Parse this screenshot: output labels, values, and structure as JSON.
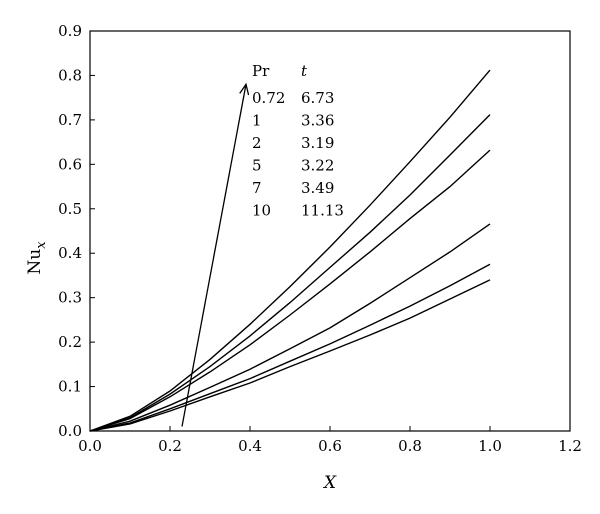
{
  "chart_data": {
    "type": "line",
    "xlabel": "X",
    "ylabel_main": "Nu",
    "ylabel_sub": "x",
    "xlim": [
      0.0,
      1.2
    ],
    "ylim": [
      0.0,
      0.9
    ],
    "xticks": [
      "0.0",
      "0.2",
      "0.4",
      "0.6",
      "0.8",
      "1.0",
      "1.2"
    ],
    "yticks": [
      "0.0",
      "0.1",
      "0.2",
      "0.3",
      "0.4",
      "0.5",
      "0.6",
      "0.7",
      "0.8",
      "0.9"
    ],
    "grid": false,
    "legend": {
      "header_pr": "Pr",
      "header_t": "t",
      "rows": [
        {
          "pr": "0.72",
          "t": "6.73"
        },
        {
          "pr": "1",
          "t": "3.36"
        },
        {
          "pr": "2",
          "t": "3.19"
        },
        {
          "pr": "5",
          "t": "3.22"
        },
        {
          "pr": "7",
          "t": "3.49"
        },
        {
          "pr": "10",
          "t": "11.13"
        }
      ]
    },
    "arrow": {
      "from": [
        0.23,
        0.01
      ],
      "to": [
        0.39,
        0.78
      ]
    },
    "x": [
      0.0,
      0.1,
      0.2,
      0.3,
      0.4,
      0.5,
      0.6,
      0.7,
      0.8,
      0.9,
      1.0
    ],
    "series": [
      {
        "values": [
          0.0,
          0.016,
          0.045,
          0.077,
          0.108,
          0.145,
          0.18,
          0.216,
          0.254,
          0.297,
          0.34
        ]
      },
      {
        "values": [
          0.0,
          0.018,
          0.05,
          0.084,
          0.118,
          0.157,
          0.196,
          0.238,
          0.281,
          0.327,
          0.375
        ]
      },
      {
        "values": [
          0.0,
          0.022,
          0.058,
          0.098,
          0.139,
          0.185,
          0.232,
          0.287,
          0.345,
          0.403,
          0.466
        ]
      },
      {
        "values": [
          0.0,
          0.028,
          0.077,
          0.133,
          0.194,
          0.261,
          0.331,
          0.403,
          0.478,
          0.55,
          0.632
        ]
      },
      {
        "values": [
          0.0,
          0.03,
          0.083,
          0.145,
          0.214,
          0.289,
          0.368,
          0.447,
          0.531,
          0.621,
          0.712
        ]
      },
      {
        "values": [
          0.0,
          0.033,
          0.09,
          0.161,
          0.24,
          0.325,
          0.414,
          0.508,
          0.606,
          0.706,
          0.812
        ]
      }
    ]
  }
}
